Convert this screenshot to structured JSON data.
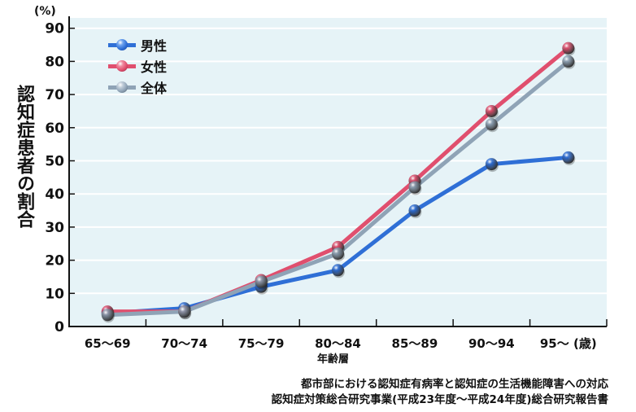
{
  "chart_data": {
    "type": "line",
    "title": "",
    "ylabel": "認知症患者の割合",
    "yunit": "(%)",
    "xlabel": "年齢層",
    "xunit": "(歳)",
    "categories": [
      "65～69",
      "70～74",
      "75～79",
      "80～84",
      "85～89",
      "90～94",
      "95～"
    ],
    "series": [
      {
        "name": "男性",
        "color": "#2f6fd6",
        "values": [
          4,
          5.5,
          12,
          17,
          35,
          49,
          51
        ]
      },
      {
        "name": "女性",
        "color": "#e04f6e",
        "values": [
          4.5,
          4.5,
          14,
          24,
          44,
          65,
          84
        ]
      },
      {
        "name": "全体",
        "color": "#8fa3b6",
        "values": [
          3.5,
          4.5,
          13.5,
          22,
          42,
          61,
          80
        ]
      }
    ],
    "yticks": [
      0,
      10,
      20,
      30,
      40,
      50,
      60,
      70,
      80,
      90
    ],
    "ylim": [
      0,
      90
    ],
    "grid": true,
    "legend_position": "top-left",
    "background": "#e6f3f7"
  },
  "labels": {
    "ylabel": "認知症患者の割合",
    "yunit": "(%)",
    "xtitle": "年齢層",
    "source_line1": "都市部における認知症有病率と認知症の生活機能障害への対応",
    "source_line2": "認知症対策総合研究事業(平成23年度～平成24年度)総合研究報告書"
  },
  "legend": [
    {
      "label": "男性",
      "color": "#2f6fd6"
    },
    {
      "label": "女性",
      "color": "#e04f6e"
    },
    {
      "label": "全体",
      "color": "#8fa3b6"
    }
  ]
}
